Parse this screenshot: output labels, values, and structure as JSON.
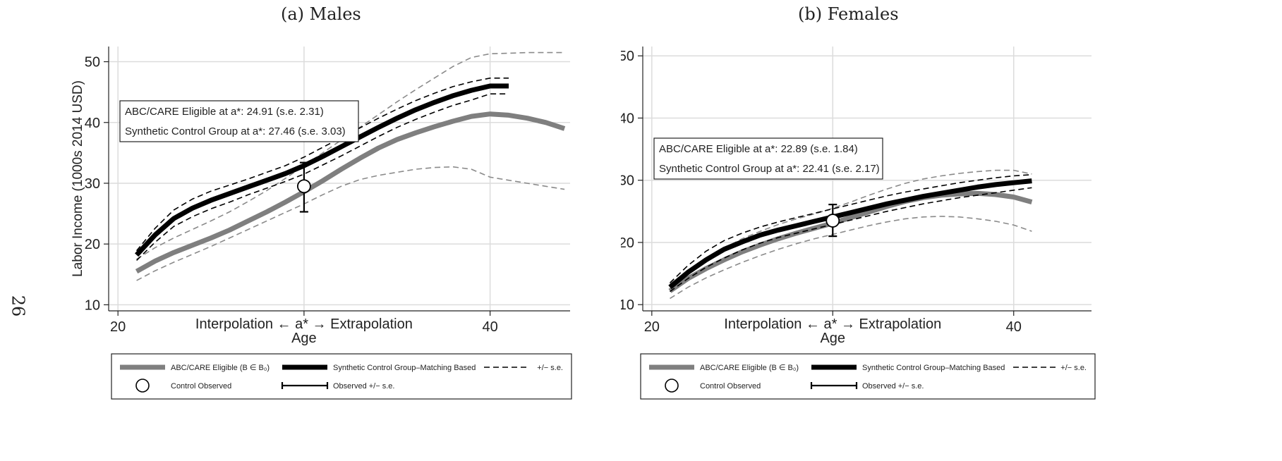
{
  "page_number": "26",
  "chart_data": [
    {
      "type": "line",
      "title": "(a) Males",
      "xlabel": "Age",
      "xsublabel": "Interpolation ← a* → Extrapolation",
      "ylabel": "Labor Income (1000s 2014 USD)",
      "xlim": [
        19.5,
        44.3
      ],
      "ylim": [
        9,
        52.5
      ],
      "xticks": [
        20,
        30,
        40
      ],
      "xtick_labels": [
        "20",
        "",
        "40"
      ],
      "yticks": [
        10,
        20,
        30,
        40,
        50
      ],
      "ytick_labels": [
        "10",
        "20",
        "30",
        "40",
        "50"
      ],
      "grid": true,
      "annotations": [
        "ABC/CARE Eligible at a*: 24.91 (s.e. 2.31)",
        "Synthetic Control Group at a*: 27.46 (s.e. 3.03)"
      ],
      "series": [
        {
          "key": "treat",
          "name": "ABC/CARE Eligible (B ∈ B₀)",
          "color": "#808080",
          "x": [
            21,
            22,
            23,
            24,
            25,
            26,
            27,
            28,
            29,
            30,
            31,
            32,
            33,
            34,
            35,
            36,
            37,
            38,
            39,
            40,
            41,
            42,
            43,
            44
          ],
          "y": [
            15.5,
            17.2,
            18.6,
            19.8,
            21.0,
            22.3,
            23.8,
            25.3,
            26.9,
            28.6,
            30.4,
            32.3,
            34.1,
            35.8,
            37.2,
            38.3,
            39.3,
            40.2,
            41.0,
            41.4,
            41.2,
            40.7,
            40.0,
            39.0
          ]
        },
        {
          "key": "treat_hi",
          "name": "",
          "color": "#808080",
          "x": [
            21,
            22,
            23,
            24,
            25,
            26,
            27,
            28,
            29,
            30,
            31,
            32,
            33,
            34,
            35,
            36,
            37,
            38,
            39,
            40,
            41,
            42,
            43,
            44
          ],
          "y": [
            17.5,
            19.4,
            21.0,
            22.4,
            23.8,
            25.3,
            27.0,
            28.8,
            30.8,
            32.9,
            35.0,
            37.1,
            39.2,
            41.3,
            43.4,
            45.4,
            47.3,
            49.2,
            50.7,
            51.3,
            51.4,
            51.5,
            51.5,
            51.5
          ]
        },
        {
          "key": "treat_lo",
          "name": "",
          "color": "#808080",
          "x": [
            21,
            22,
            23,
            24,
            25,
            26,
            27,
            28,
            29,
            30,
            31,
            32,
            33,
            34,
            35,
            36,
            37,
            38,
            39,
            40,
            41,
            42,
            43,
            44
          ],
          "y": [
            14.0,
            15.6,
            17.0,
            18.3,
            19.6,
            21.0,
            22.4,
            23.8,
            25.2,
            26.6,
            28.1,
            29.5,
            30.6,
            31.3,
            31.8,
            32.3,
            32.6,
            32.7,
            32.3,
            31.0,
            30.5,
            30.0,
            29.5,
            29.0
          ]
        },
        {
          "key": "synth",
          "name": "Synthetic Control Group–Matching Based",
          "color": "#000000",
          "x": [
            21,
            22,
            23,
            24,
            25,
            26,
            27,
            28,
            29,
            30,
            31,
            32,
            33,
            34,
            35,
            36,
            37,
            38,
            39,
            40,
            41
          ],
          "y": [
            18.2,
            21.5,
            24.2,
            25.9,
            27.2,
            28.3,
            29.4,
            30.5,
            31.6,
            32.9,
            34.4,
            36.0,
            37.6,
            39.2,
            40.7,
            42.1,
            43.3,
            44.4,
            45.3,
            46.0,
            46.0
          ]
        },
        {
          "key": "synth_hi",
          "name": "+/− s.e.",
          "color": "#000000",
          "x": [
            21,
            22,
            23,
            24,
            25,
            26,
            27,
            28,
            29,
            30,
            31,
            32,
            33,
            34,
            35,
            36,
            37,
            38,
            39,
            40,
            41
          ],
          "y": [
            18.9,
            22.6,
            25.6,
            27.4,
            28.7,
            29.7,
            30.7,
            31.8,
            32.9,
            34.3,
            35.9,
            37.5,
            39.1,
            40.7,
            42.2,
            43.6,
            44.8,
            45.9,
            46.7,
            47.3,
            47.3
          ]
        },
        {
          "key": "synth_lo",
          "name": "",
          "color": "#000000",
          "x": [
            21,
            22,
            23,
            24,
            25,
            26,
            27,
            28,
            29,
            30,
            31,
            32,
            33,
            34,
            35,
            36,
            37,
            38,
            39,
            40,
            41
          ],
          "y": [
            17.3,
            20.3,
            22.9,
            24.5,
            25.8,
            26.9,
            28.1,
            29.2,
            30.3,
            31.5,
            33.0,
            34.5,
            36.1,
            37.7,
            39.2,
            40.5,
            41.7,
            42.8,
            43.7,
            44.7,
            44.7
          ]
        },
        {
          "key": "control_obs",
          "name": "Control Observed",
          "x": [
            30
          ],
          "y": [
            29.5
          ],
          "err_lo": [
            25.3
          ],
          "err_hi": [
            33.4
          ]
        }
      ],
      "legend": [
        {
          "label": "ABC/CARE Eligible (B ∈ B₀)",
          "style": "thick-gray"
        },
        {
          "label": "Synthetic Control Group–Matching Based",
          "style": "thick-black"
        },
        {
          "label": "+/− s.e.",
          "style": "dashed"
        },
        {
          "label": "Control Observed",
          "style": "circle"
        },
        {
          "label": "Observed +/− s.e.",
          "style": "errorbar"
        }
      ]
    },
    {
      "type": "line",
      "title": "(b) Females",
      "xlabel": "Age",
      "xsublabel": "Interpolation ← a* → Extrapolation",
      "ylabel": "Labor Income (1000s 2014 USD)",
      "xlim": [
        19.5,
        44.3
      ],
      "ylim": [
        9,
        51.5
      ],
      "xticks": [
        20,
        30,
        40
      ],
      "xtick_labels": [
        "20",
        "",
        "40"
      ],
      "yticks": [
        10,
        20,
        30,
        40,
        50
      ],
      "ytick_labels": [
        "10",
        "20",
        "30",
        "40",
        "50"
      ],
      "grid": true,
      "annotations": [
        "ABC/CARE Eligible at a*: 22.89 (s.e. 1.84)",
        "Synthetic Control Group at a*: 22.41 (s.e. 2.17)"
      ],
      "series": [
        {
          "key": "treat",
          "name": "ABC/CARE Eligible (B ∈ B₀)",
          "color": "#808080",
          "x": [
            21,
            22,
            23,
            24,
            25,
            26,
            27,
            28,
            29,
            30,
            31,
            32,
            33,
            34,
            35,
            36,
            37,
            38,
            39,
            40,
            41
          ],
          "y": [
            12.2,
            14.2,
            15.8,
            17.2,
            18.5,
            19.6,
            20.6,
            21.5,
            22.3,
            23.1,
            24.0,
            24.9,
            25.8,
            26.6,
            27.2,
            27.6,
            27.8,
            27.9,
            27.7,
            27.3,
            26.5
          ]
        },
        {
          "key": "treat_hi",
          "name": "",
          "color": "#808080",
          "x": [
            21,
            22,
            23,
            24,
            25,
            26,
            27,
            28,
            29,
            30,
            31,
            32,
            33,
            34,
            35,
            36,
            37,
            38,
            39,
            40,
            41
          ],
          "y": [
            13.3,
            15.5,
            17.4,
            19.1,
            20.6,
            21.8,
            22.9,
            23.8,
            24.6,
            25.5,
            26.5,
            27.6,
            28.6,
            29.5,
            30.2,
            30.7,
            31.1,
            31.4,
            31.6,
            31.6,
            31.0
          ]
        },
        {
          "key": "treat_lo",
          "name": "",
          "color": "#808080",
          "x": [
            21,
            22,
            23,
            24,
            25,
            26,
            27,
            28,
            29,
            30,
            31,
            32,
            33,
            34,
            35,
            36,
            37,
            38,
            39,
            40,
            41
          ],
          "y": [
            11.0,
            12.8,
            14.3,
            15.6,
            16.8,
            17.9,
            18.9,
            19.8,
            20.6,
            21.3,
            22.0,
            22.7,
            23.3,
            23.8,
            24.1,
            24.2,
            24.1,
            23.8,
            23.4,
            22.8,
            21.8
          ]
        },
        {
          "key": "synth",
          "name": "Synthetic Control Group–Matching Based",
          "color": "#000000",
          "x": [
            21,
            22,
            23,
            24,
            25,
            26,
            27,
            28,
            29,
            30,
            31,
            32,
            33,
            34,
            35,
            36,
            37,
            38,
            39,
            40,
            41
          ],
          "y": [
            12.8,
            15.2,
            17.2,
            18.9,
            20.1,
            21.2,
            22.0,
            22.7,
            23.4,
            24.1,
            24.8,
            25.5,
            26.2,
            26.8,
            27.4,
            27.9,
            28.4,
            28.9,
            29.3,
            29.6,
            29.9
          ]
        },
        {
          "key": "synth_hi",
          "name": "+/− s.e.",
          "color": "#000000",
          "x": [
            21,
            22,
            23,
            24,
            25,
            26,
            27,
            28,
            29,
            30,
            31,
            32,
            33,
            34,
            35,
            36,
            37,
            38,
            39,
            40,
            41
          ],
          "y": [
            13.5,
            16.3,
            18.6,
            20.3,
            21.5,
            22.5,
            23.3,
            24.0,
            24.7,
            25.4,
            26.1,
            26.8,
            27.5,
            28.1,
            28.6,
            29.1,
            29.6,
            30.0,
            30.4,
            30.7,
            30.9
          ]
        },
        {
          "key": "synth_lo",
          "name": "",
          "color": "#000000",
          "x": [
            21,
            22,
            23,
            24,
            25,
            26,
            27,
            28,
            29,
            30,
            31,
            32,
            33,
            34,
            35,
            36,
            37,
            38,
            39,
            40,
            41
          ],
          "y": [
            12.1,
            14.2,
            16.0,
            17.5,
            18.8,
            19.9,
            20.8,
            21.5,
            22.2,
            22.9,
            23.6,
            24.3,
            25.0,
            25.6,
            26.2,
            26.7,
            27.2,
            27.6,
            28.0,
            28.4,
            28.8
          ]
        },
        {
          "key": "control_obs",
          "name": "Control Observed",
          "x": [
            30
          ],
          "y": [
            23.5
          ],
          "err_lo": [
            21.0
          ],
          "err_hi": [
            26.1
          ]
        }
      ],
      "legend": [
        {
          "label": "ABC/CARE Eligible (B ∈ B₀)",
          "style": "thick-gray"
        },
        {
          "label": "Synthetic Control Group–Matching Based",
          "style": "thick-black"
        },
        {
          "label": "+/− s.e.",
          "style": "dashed"
        },
        {
          "label": "Control Observed",
          "style": "circle"
        },
        {
          "label": "Observed +/− s.e.",
          "style": "errorbar"
        }
      ]
    }
  ]
}
